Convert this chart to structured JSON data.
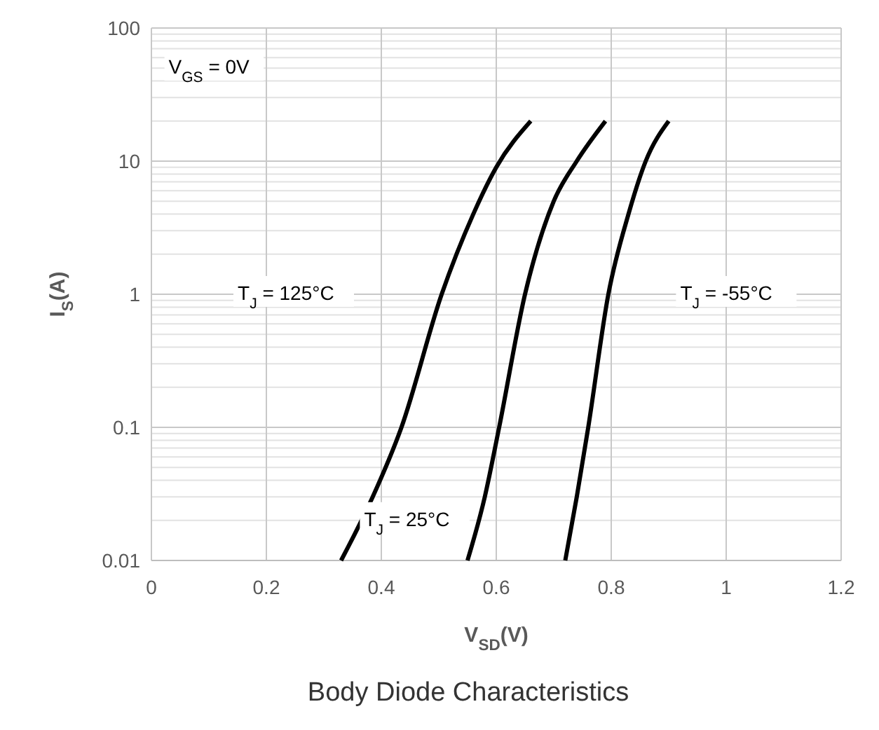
{
  "chart_data": {
    "type": "line",
    "title": "Body Diode Characteristics",
    "xlabel": "V$_{SD}$(V)",
    "ylabel": "I$_{S}$(A)",
    "log": "y",
    "grid": true,
    "marker": "none",
    "line_style": "solid",
    "xlim": [
      0,
      1.2
    ],
    "ylim": [
      0.01,
      100
    ],
    "xticks": [
      0,
      0.2,
      0.4,
      0.6,
      0.8,
      1,
      1.2
    ],
    "yticks": [
      0.01,
      0.1,
      1,
      10,
      100
    ],
    "series": [
      {
        "color": "#000000",
        "x": [
          0.33,
          0.385,
          0.435,
          0.505,
          0.56,
          0.6,
          0.66
        ],
        "values": [
          0.01,
          0.03,
          0.1,
          1,
          4,
          9,
          20
        ]
      },
      {
        "color": "#000000",
        "x": [
          0.55,
          0.58,
          0.605,
          0.65,
          0.7,
          0.74,
          0.79
        ],
        "values": [
          0.01,
          0.03,
          0.1,
          1,
          5,
          10,
          20
        ]
      },
      {
        "color": "#000000",
        "x": [
          0.72,
          0.74,
          0.76,
          0.795,
          0.83,
          0.86,
          0.9
        ],
        "values": [
          0.01,
          0.03,
          0.1,
          1,
          4,
          10,
          20
        ]
      }
    ],
    "annotations": [
      "V$_{GS}$ = 0V",
      "T$_{J}$ = 125°C",
      "T$_{J}$ = 25°C",
      "T$_{J}$ = -55°C"
    ]
  }
}
